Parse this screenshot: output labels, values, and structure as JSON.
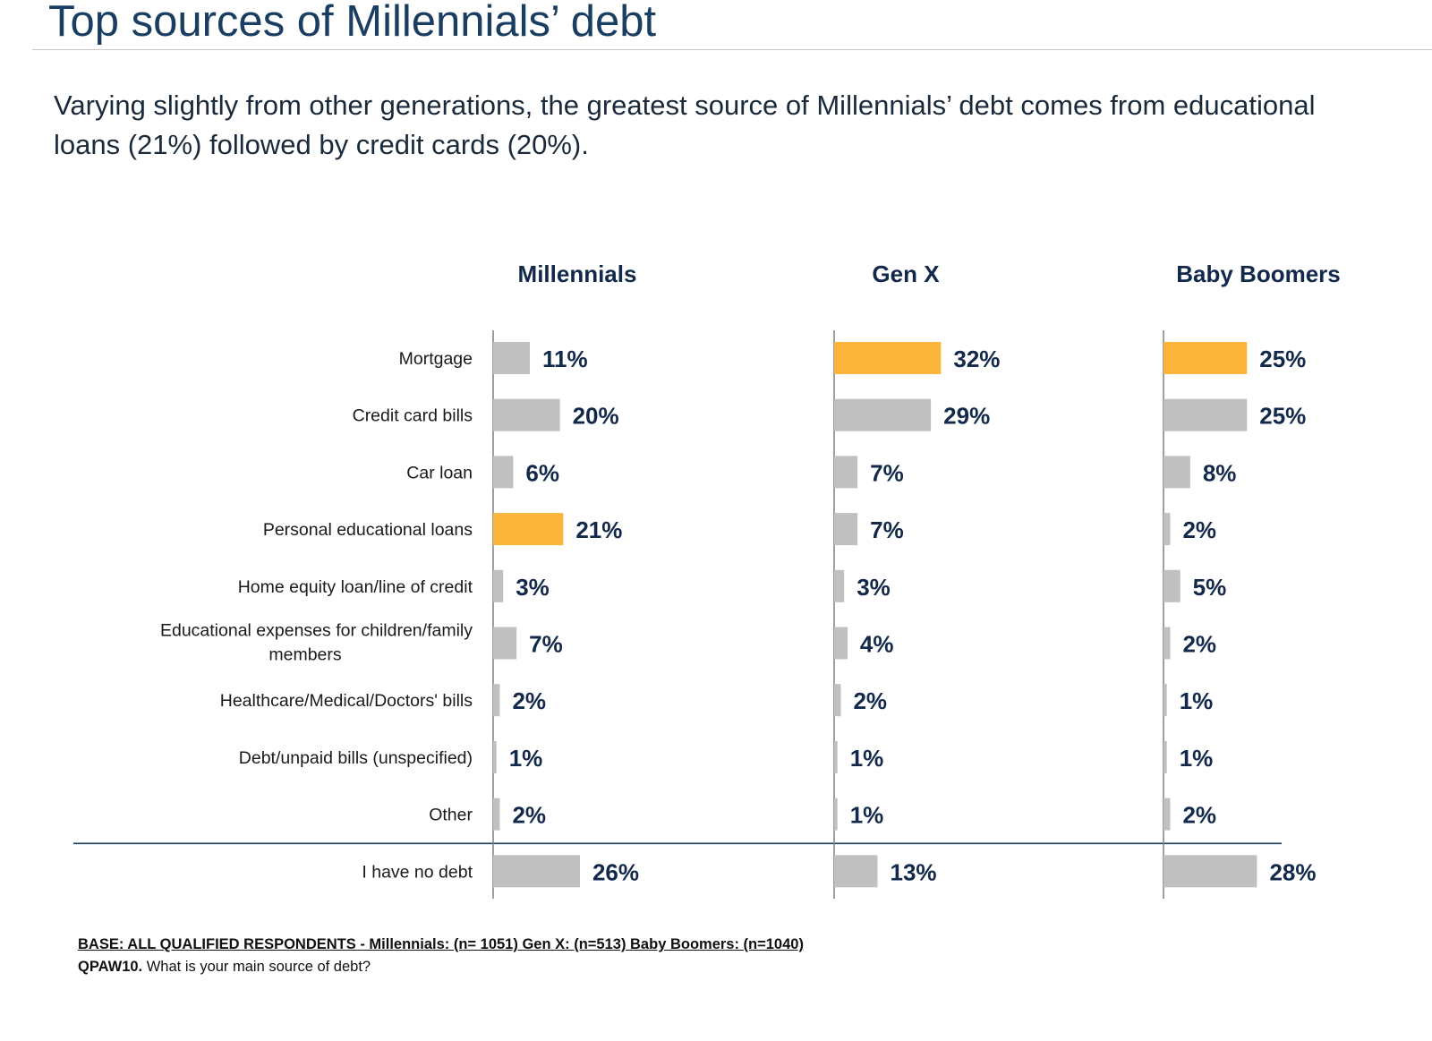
{
  "title": "Top sources of Millennials’ debt",
  "subtitle": "Varying slightly from other generations, the greatest source of Millennials’ debt comes from educational loans (21%) followed by credit cards (20%).",
  "footnote": {
    "base": "BASE:  ALL QUALIFIED RESPONDENTS - Millennials: (n= 1051) Gen X: (n=513)  Baby Boomers: (n=1040)",
    "question_code": "QPAW10.",
    "question_text": " What is your main source of debt?"
  },
  "colors": {
    "bar_default": "#c0c0c0",
    "bar_highlight": "#fbb53a",
    "value_text": "#13294b",
    "axis": "#7f7f7f",
    "title": "#1a3e62"
  },
  "chart_data": {
    "type": "bar",
    "orientation": "horizontal",
    "unit": "%",
    "categories": [
      "Mortgage",
      "Credit card bills",
      "Car loan",
      "Personal educational loans",
      "Home equity loan/line of credit",
      "Educational expenses for children/family members",
      "Healthcare/Medical/Doctors' bills",
      "Debt/unpaid bills (unspecified)",
      "Other",
      "I have no debt"
    ],
    "series": [
      {
        "name": "Millennials",
        "values": [
          11,
          20,
          6,
          21,
          3,
          7,
          2,
          1,
          2,
          26
        ],
        "highlight_index": 3
      },
      {
        "name": "Gen X",
        "values": [
          32,
          29,
          7,
          7,
          3,
          4,
          2,
          1,
          1,
          13
        ],
        "highlight_index": 0
      },
      {
        "name": "Baby Boomers",
        "values": [
          25,
          25,
          8,
          2,
          5,
          2,
          1,
          1,
          2,
          28
        ],
        "highlight_index": 0
      }
    ],
    "separator_before": "I have no debt",
    "xlim": [
      0,
      100
    ]
  }
}
